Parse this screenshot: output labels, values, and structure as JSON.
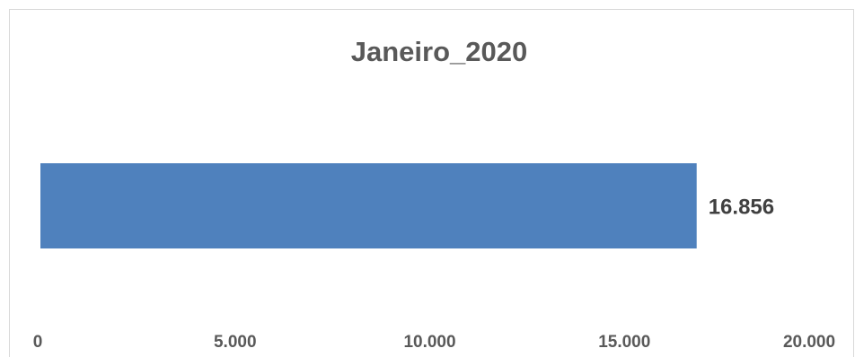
{
  "chart_data": {
    "type": "bar",
    "orientation": "horizontal",
    "title": "Janeiro_2020",
    "categories": [
      ""
    ],
    "values": [
      16856
    ],
    "value_labels": [
      "16.856"
    ],
    "xlim": [
      0,
      20000
    ],
    "x_ticks": [
      0,
      5000,
      10000,
      15000,
      20000
    ],
    "x_tick_labels": [
      "0",
      "5.000",
      "10.000",
      "15.000",
      "20.000"
    ],
    "grid": false,
    "legend": "none",
    "bar_color": "#4f81bd"
  }
}
